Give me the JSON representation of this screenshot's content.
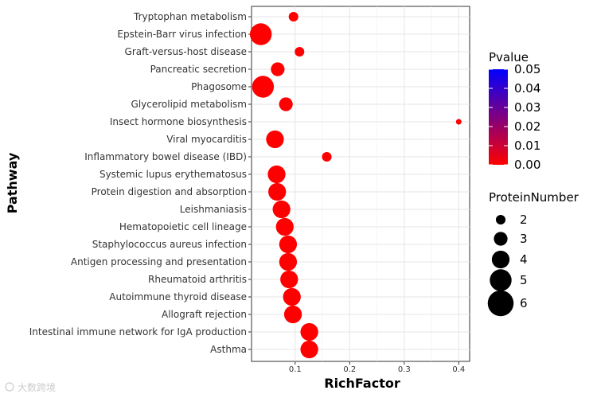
{
  "chart_data": {
    "type": "scatter",
    "title": "",
    "xlabel": "RichFactor",
    "ylabel": "Pathway",
    "xlim": [
      0.02,
      0.42
    ],
    "xticks": [
      0.1,
      0.2,
      0.3,
      0.4
    ],
    "xtick_labels": [
      "0.1",
      "0.2",
      "0.3",
      "0.4"
    ],
    "grid": true,
    "points": [
      {
        "pathway": "Tryptophan metabolism",
        "rich_factor": 0.097,
        "protein_number": 2,
        "pvalue": 0.0
      },
      {
        "pathway": "Epstein-Barr virus infection",
        "rich_factor": 0.037,
        "protein_number": 5,
        "pvalue": 0.0
      },
      {
        "pathway": "Graft-versus-host disease",
        "rich_factor": 0.108,
        "protein_number": 2,
        "pvalue": 0.0
      },
      {
        "pathway": "Pancreatic secretion",
        "rich_factor": 0.068,
        "protein_number": 3,
        "pvalue": 0.0
      },
      {
        "pathway": "Phagosome",
        "rich_factor": 0.041,
        "protein_number": 5,
        "pvalue": 0.0
      },
      {
        "pathway": "Glycerolipid metabolism",
        "rich_factor": 0.083,
        "protein_number": 3,
        "pvalue": 0.0
      },
      {
        "pathway": "Insect hormone biosynthesis",
        "rich_factor": 0.4,
        "protein_number": 1,
        "pvalue": 0.0
      },
      {
        "pathway": "Viral myocarditis",
        "rich_factor": 0.063,
        "protein_number": 4,
        "pvalue": 0.0
      },
      {
        "pathway": "Inflammatory bowel disease (IBD)",
        "rich_factor": 0.158,
        "protein_number": 2,
        "pvalue": 0.0
      },
      {
        "pathway": "Systemic lupus erythematosus",
        "rich_factor": 0.066,
        "protein_number": 4,
        "pvalue": 0.0
      },
      {
        "pathway": "Protein digestion and absorption",
        "rich_factor": 0.067,
        "protein_number": 4,
        "pvalue": 0.0
      },
      {
        "pathway": "Leishmaniasis",
        "rich_factor": 0.075,
        "protein_number": 4,
        "pvalue": 0.0
      },
      {
        "pathway": "Hematopoietic cell lineage",
        "rich_factor": 0.081,
        "protein_number": 4,
        "pvalue": 0.0
      },
      {
        "pathway": "Staphylococcus aureus infection",
        "rich_factor": 0.087,
        "protein_number": 4,
        "pvalue": 0.0
      },
      {
        "pathway": "Antigen processing and presentation",
        "rich_factor": 0.087,
        "protein_number": 4,
        "pvalue": 0.0
      },
      {
        "pathway": "Rheumatoid arthritis",
        "rich_factor": 0.089,
        "protein_number": 4,
        "pvalue": 0.0
      },
      {
        "pathway": "Autoimmune thyroid disease",
        "rich_factor": 0.094,
        "protein_number": 4,
        "pvalue": 0.0
      },
      {
        "pathway": "Allograft rejection",
        "rich_factor": 0.096,
        "protein_number": 4,
        "pvalue": 0.0
      },
      {
        "pathway": "Intestinal immune network for IgA production",
        "rich_factor": 0.126,
        "protein_number": 4,
        "pvalue": 0.0
      },
      {
        "pathway": "Asthma",
        "rich_factor": 0.126,
        "protein_number": 4,
        "pvalue": 0.0
      }
    ],
    "color_legend": {
      "title": "Pvalue",
      "range": [
        0.0,
        0.05
      ],
      "low_color": "#ff0000",
      "high_color": "#0000ff",
      "ticks": [
        0.05,
        0.04,
        0.03,
        0.02,
        0.01,
        0.0
      ],
      "tick_labels": [
        "0.05",
        "0.04",
        "0.03",
        "0.02",
        "0.01",
        "0.00"
      ]
    },
    "size_legend": {
      "title": "ProteinNumber",
      "values": [
        2,
        3,
        4,
        5,
        6
      ],
      "labels": [
        "2",
        "3",
        "4",
        "5",
        "6"
      ]
    }
  },
  "watermark": "大数跨境"
}
